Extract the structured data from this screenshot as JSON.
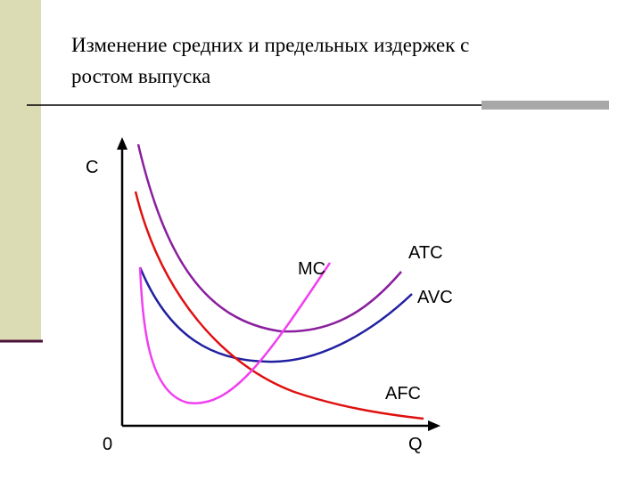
{
  "header": {
    "title_lines": [
      "Изменение средних и предельных издержек с",
      "ростом выпуска"
    ]
  },
  "diagram": {
    "y_axis_label": "C",
    "x_axis_label": "Q",
    "origin_label": "0",
    "curves": [
      {
        "label": "ATC"
      },
      {
        "label": "AVC"
      },
      {
        "label": "AFC"
      },
      {
        "label": "MC"
      }
    ]
  }
}
